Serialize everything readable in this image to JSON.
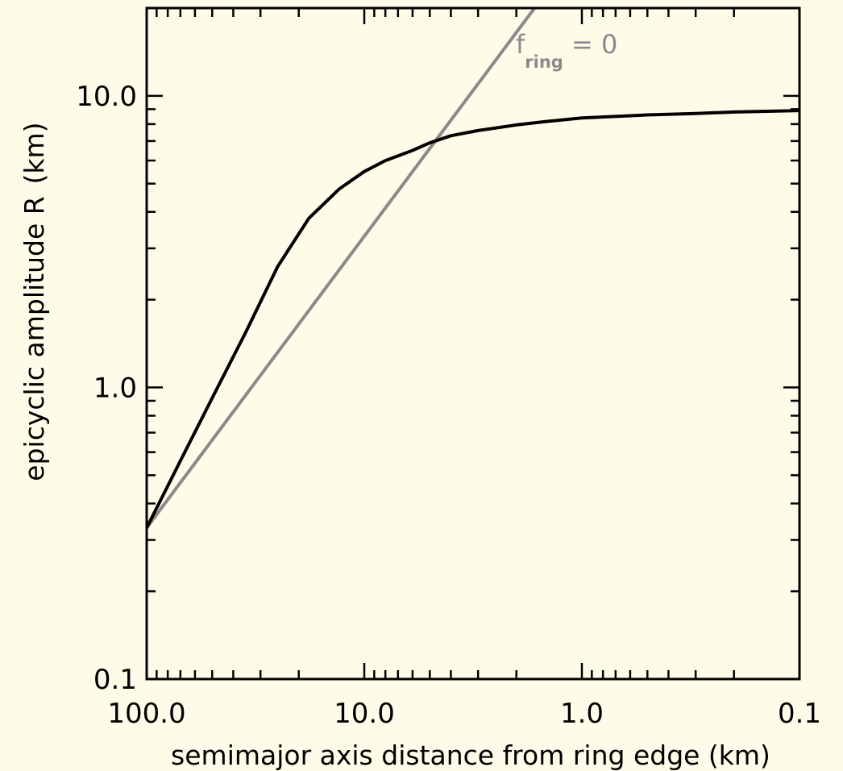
{
  "chart_data": {
    "type": "line",
    "xlabel": "semimajor axis distance from ring edge (km)",
    "ylabel": "epicyclic amplitude R",
    "ylabel_unit": "(km)",
    "x_scale": "log",
    "y_scale": "log",
    "x_reversed": true,
    "xlim": [
      100.0,
      0.1
    ],
    "ylim": [
      0.1,
      20.0
    ],
    "x_ticks": [
      {
        "value": 100.0,
        "label": "100.0"
      },
      {
        "value": 10.0,
        "label": "10.0"
      },
      {
        "value": 1.0,
        "label": "1.0"
      },
      {
        "value": 0.1,
        "label": "0.1"
      }
    ],
    "y_ticks": [
      {
        "value": 0.1,
        "label": "0.1"
      },
      {
        "value": 1.0,
        "label": "1.0"
      },
      {
        "value": 10.0,
        "label": "10.0"
      }
    ],
    "grid": false,
    "series": [
      {
        "color": "#000000",
        "x": [
          100.0,
          70.0,
          50.0,
          35.0,
          25.0,
          18.0,
          13.0,
          10.0,
          8.0,
          6.0,
          5.0,
          4.0,
          3.0,
          2.0,
          1.5,
          1.0,
          0.7,
          0.5,
          0.3,
          0.2,
          0.1
        ],
        "y": [
          0.33,
          0.56,
          0.92,
          1.55,
          2.6,
          3.8,
          4.8,
          5.5,
          6.0,
          6.5,
          6.9,
          7.3,
          7.6,
          7.95,
          8.15,
          8.4,
          8.5,
          8.6,
          8.7,
          8.8,
          8.9
        ]
      },
      {
        "name": "f_ring = 0",
        "color": "#8a8a8a",
        "x": [
          100.0,
          1.65
        ],
        "y": [
          0.33,
          20.0
        ]
      }
    ],
    "annotations": [
      {
        "text": "f",
        "subscript": "ring",
        "suffix": " = 0",
        "color": "#8a8a8a",
        "position": "top-center"
      }
    ]
  }
}
